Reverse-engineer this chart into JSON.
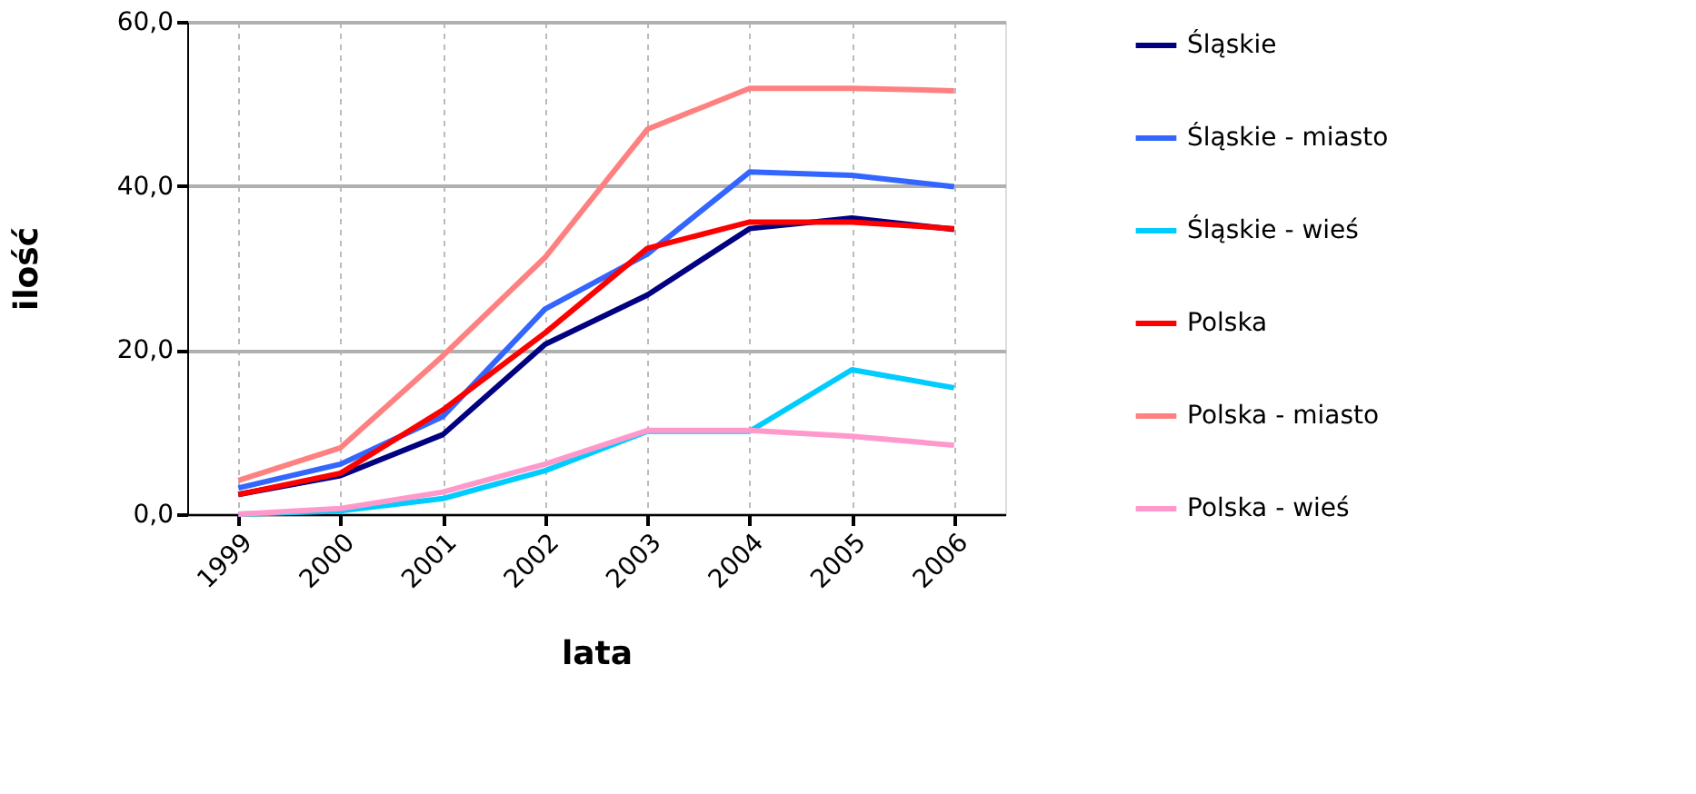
{
  "chart_data": {
    "type": "line",
    "xlabel": "lata",
    "ylabel": "ilość",
    "categories": [
      "1999",
      "2000",
      "2001",
      "2002",
      "2003",
      "2004",
      "2005",
      "2006"
    ],
    "series": [
      {
        "name": "Śląskie",
        "color": "#000080",
        "values": [
          2.4,
          4.7,
          9.7,
          20.7,
          26.7,
          34.8,
          36.1,
          34.7
        ]
      },
      {
        "name": "Śląskie - miasto",
        "color": "#3366ff",
        "values": [
          3.2,
          6.1,
          11.9,
          25.0,
          31.7,
          41.7,
          41.3,
          39.9
        ]
      },
      {
        "name": "Śląskie - wieś",
        "color": "#00ccff",
        "values": [
          0.0,
          0.4,
          1.9,
          5.3,
          10.1,
          10.1,
          17.6,
          15.4
        ]
      },
      {
        "name": "Polska",
        "color": "#ff0000",
        "values": [
          2.4,
          5.0,
          12.7,
          22.1,
          32.4,
          35.6,
          35.6,
          34.8
        ]
      },
      {
        "name": "Polska - miasto",
        "color": "#ff8080",
        "values": [
          4.1,
          8.1,
          19.3,
          31.3,
          46.9,
          51.9,
          51.9,
          51.6
        ]
      },
      {
        "name": "Polska - wieś",
        "color": "#ff99cc",
        "values": [
          0.0,
          0.7,
          2.7,
          6.1,
          10.2,
          10.2,
          9.5,
          8.4
        ]
      }
    ],
    "ylim": [
      0,
      60
    ],
    "yticks": [
      {
        "value": 0,
        "label": "0,0"
      },
      {
        "value": 20,
        "label": "20,0"
      },
      {
        "value": 40,
        "label": "40,0"
      },
      {
        "value": 60,
        "label": "60,0"
      }
    ],
    "grid": true,
    "legend": "right",
    "marker": "none",
    "line_style": "solid"
  }
}
